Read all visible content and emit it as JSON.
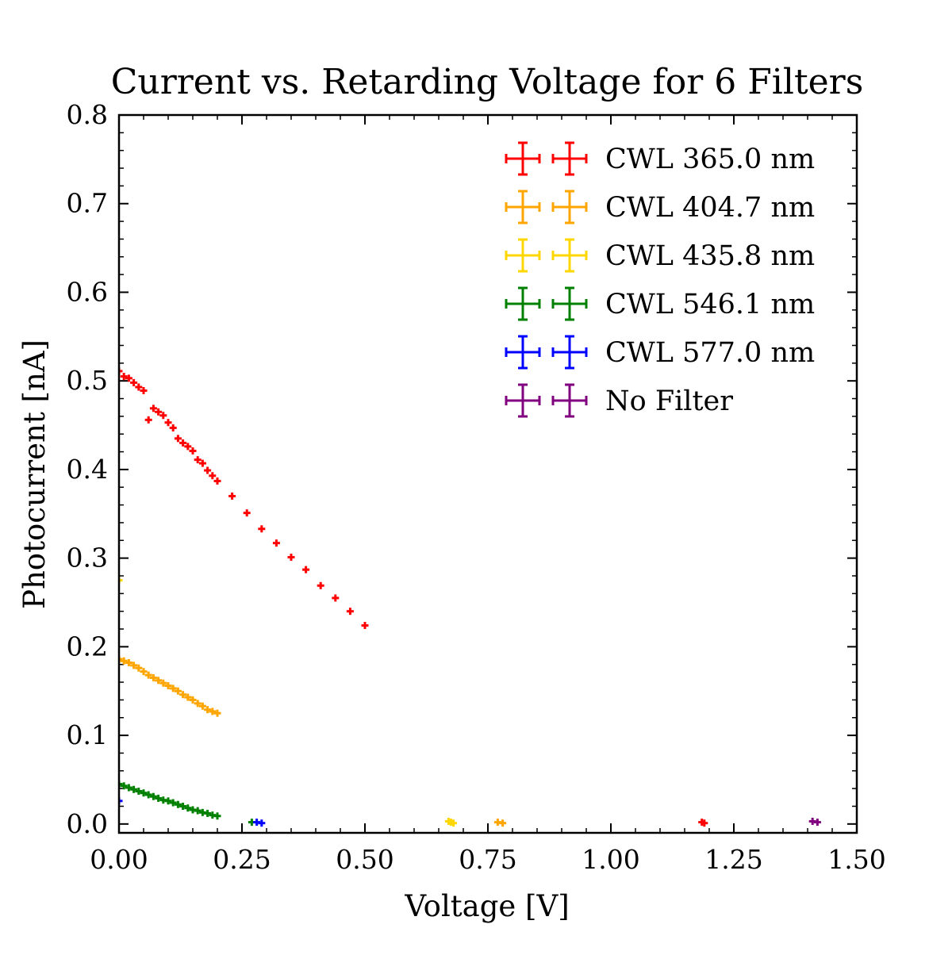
{
  "chart_data": {
    "type": "scatter",
    "title": "Current vs. Retarding Voltage for 6 Filters",
    "xlabel": "Voltage [V]",
    "ylabel": "Photocurrent [nA]",
    "xlim": [
      0.0,
      1.5
    ],
    "ylim": [
      -0.01,
      0.8
    ],
    "x_ticks": [
      0.0,
      0.25,
      0.5,
      0.75,
      1.0,
      1.25,
      1.5
    ],
    "x_tick_labels": [
      "0.00",
      "0.25",
      "0.50",
      "0.75",
      "1.00",
      "1.25",
      "1.50"
    ],
    "y_ticks": [
      0.0,
      0.1,
      0.2,
      0.3,
      0.4,
      0.5,
      0.6,
      0.7,
      0.8
    ],
    "y_tick_labels": [
      "0.0",
      "0.1",
      "0.2",
      "0.3",
      "0.4",
      "0.5",
      "0.6",
      "0.7",
      "0.8"
    ],
    "grid": false,
    "legend_position": "top-right",
    "series": [
      {
        "name": "CWL 365.0 nm",
        "color": "#ff0000",
        "points": [
          [
            0.0,
            0.511
          ],
          [
            0.01,
            0.505
          ],
          [
            0.02,
            0.503
          ],
          [
            0.03,
            0.498
          ],
          [
            0.04,
            0.493
          ],
          [
            0.05,
            0.489
          ],
          [
            0.06,
            0.456
          ],
          [
            0.07,
            0.469
          ],
          [
            0.08,
            0.465
          ],
          [
            0.09,
            0.461
          ],
          [
            0.1,
            0.453
          ],
          [
            0.11,
            0.447
          ],
          [
            0.12,
            0.435
          ],
          [
            0.13,
            0.43
          ],
          [
            0.14,
            0.426
          ],
          [
            0.15,
            0.421
          ],
          [
            0.16,
            0.411
          ],
          [
            0.17,
            0.407
          ],
          [
            0.18,
            0.399
          ],
          [
            0.19,
            0.393
          ],
          [
            0.2,
            0.387
          ],
          [
            0.23,
            0.37
          ],
          [
            0.26,
            0.351
          ],
          [
            0.29,
            0.333
          ],
          [
            0.32,
            0.317
          ],
          [
            0.35,
            0.301
          ],
          [
            0.38,
            0.287
          ],
          [
            0.41,
            0.269
          ],
          [
            0.44,
            0.255
          ],
          [
            0.47,
            0.24
          ],
          [
            0.5,
            0.224
          ],
          [
            1.185,
            0.002
          ],
          [
            1.19,
            0.001
          ]
        ]
      },
      {
        "name": "CWL 404.7 nm",
        "color": "#ffa500",
        "points": [
          [
            0.0,
            0.186
          ],
          [
            0.01,
            0.184
          ],
          [
            0.02,
            0.182
          ],
          [
            0.03,
            0.179
          ],
          [
            0.04,
            0.176
          ],
          [
            0.05,
            0.172
          ],
          [
            0.06,
            0.168
          ],
          [
            0.07,
            0.165
          ],
          [
            0.08,
            0.162
          ],
          [
            0.09,
            0.159
          ],
          [
            0.1,
            0.156
          ],
          [
            0.11,
            0.153
          ],
          [
            0.12,
            0.15
          ],
          [
            0.13,
            0.146
          ],
          [
            0.14,
            0.143
          ],
          [
            0.15,
            0.14
          ],
          [
            0.16,
            0.136
          ],
          [
            0.17,
            0.133
          ],
          [
            0.18,
            0.129
          ],
          [
            0.19,
            0.127
          ],
          [
            0.2,
            0.125
          ],
          [
            0.77,
            0.002
          ],
          [
            0.78,
            0.001
          ]
        ]
      },
      {
        "name": "CWL 435.8 nm",
        "color": "#ffd700",
        "points": [
          [
            0.0,
            0.275
          ],
          [
            0.67,
            0.003
          ],
          [
            0.675,
            0.002
          ],
          [
            0.68,
            0.001
          ]
        ]
      },
      {
        "name": "CWL 546.1 nm",
        "color": "#008000",
        "points": [
          [
            0.0,
            0.045
          ],
          [
            0.01,
            0.043
          ],
          [
            0.02,
            0.041
          ],
          [
            0.03,
            0.039
          ],
          [
            0.04,
            0.037
          ],
          [
            0.05,
            0.035
          ],
          [
            0.06,
            0.033
          ],
          [
            0.07,
            0.031
          ],
          [
            0.08,
            0.029
          ],
          [
            0.09,
            0.027
          ],
          [
            0.1,
            0.026
          ],
          [
            0.11,
            0.024
          ],
          [
            0.12,
            0.022
          ],
          [
            0.13,
            0.02
          ],
          [
            0.14,
            0.018
          ],
          [
            0.15,
            0.016
          ],
          [
            0.16,
            0.015
          ],
          [
            0.17,
            0.013
          ],
          [
            0.18,
            0.012
          ],
          [
            0.19,
            0.01
          ],
          [
            0.2,
            0.009
          ],
          [
            0.27,
            0.002
          ]
        ]
      },
      {
        "name": "CWL 577.0 nm",
        "color": "#0000ff",
        "points": [
          [
            0.0,
            0.026
          ],
          [
            0.28,
            0.002
          ],
          [
            0.29,
            0.001
          ]
        ]
      },
      {
        "name": "No Filter",
        "color": "#800080",
        "points": [
          [
            1.41,
            0.003
          ],
          [
            1.42,
            0.002
          ]
        ]
      }
    ]
  }
}
